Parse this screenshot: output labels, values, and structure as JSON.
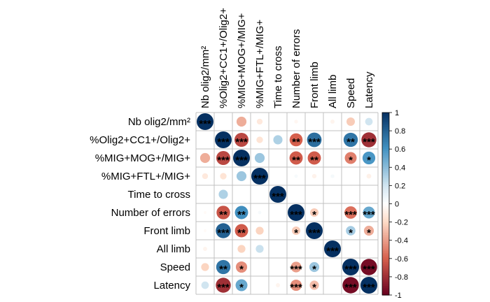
{
  "chart_data": {
    "type": "heatmap",
    "style": "corrplot-circles",
    "variables": [
      "Nb olig2/mm²",
      "%Olig2+CC1+/Olig2+",
      "%MIG+MOG+/MIG+",
      "%MIG+FTL+/MIG+",
      "Time to cross",
      "Number of errors",
      "Front limb",
      "All limb",
      "Speed",
      "Latency"
    ],
    "matrix": [
      [
        1.0,
        0.0,
        -0.35,
        -0.12,
        0.0,
        -0.05,
        0.0,
        -0.06,
        -0.25,
        0.2
      ],
      [
        0.0,
        1.0,
        -0.7,
        -0.15,
        0.3,
        -0.6,
        0.75,
        0.0,
        0.72,
        -0.8
      ],
      [
        -0.35,
        -0.7,
        1.0,
        0.35,
        0.0,
        -0.62,
        -0.62,
        0.0,
        -0.5,
        0.58
      ],
      [
        -0.12,
        -0.15,
        0.35,
        1.0,
        0.0,
        0.04,
        -0.07,
        0.05,
        0.0,
        -0.08
      ],
      [
        0.0,
        0.3,
        0.0,
        0.0,
        1.0,
        0.0,
        0.0,
        0.0,
        0.0,
        0.0
      ],
      [
        -0.03,
        -0.65,
        0.62,
        0.04,
        0.0,
        1.0,
        -0.25,
        0.0,
        -0.55,
        0.5
      ],
      [
        -0.03,
        0.8,
        -0.62,
        -0.22,
        0.0,
        -0.25,
        1.0,
        0.0,
        0.32,
        -0.35
      ],
      [
        -0.06,
        0.0,
        -0.22,
        0.22,
        0.0,
        0.0,
        0.0,
        1.0,
        0.0,
        0.0
      ],
      [
        -0.22,
        0.72,
        -0.45,
        0.0,
        0.0,
        -0.4,
        0.35,
        0.0,
        1.0,
        -0.95
      ],
      [
        0.2,
        -0.8,
        0.5,
        0.0,
        -0.06,
        -0.45,
        -0.3,
        0.0,
        -0.95,
        1.0
      ]
    ],
    "significance": [
      [
        "***",
        "",
        "",
        "",
        "",
        "",
        "",
        "",
        "",
        ""
      ],
      [
        "",
        "***",
        "***",
        "",
        "",
        "**",
        "***",
        "",
        "**",
        "***"
      ],
      [
        "",
        "***",
        "***",
        "",
        "",
        "**",
        "**",
        "",
        "*",
        "*"
      ],
      [
        "",
        "",
        "",
        "***",
        "",
        "",
        "",
        "",
        "",
        ""
      ],
      [
        "",
        "",
        "",
        "",
        "***",
        "",
        "",
        "",
        "",
        ""
      ],
      [
        "",
        "**",
        "**",
        "",
        "",
        "***",
        "*",
        "",
        "***",
        "***"
      ],
      [
        "",
        "***",
        "**",
        "",
        "",
        "*",
        "***",
        "",
        "*",
        "*"
      ],
      [
        "",
        "",
        "",
        "",
        "",
        "",
        "",
        "***",
        "",
        ""
      ],
      [
        "",
        "**",
        "*",
        "",
        "",
        "***",
        "*",
        "",
        "***",
        "***"
      ],
      [
        "",
        "***",
        "*",
        "",
        "",
        "***",
        "*",
        "",
        "***",
        "***"
      ]
    ],
    "colorbar": {
      "range": [
        -1,
        1
      ],
      "ticks": [
        "1",
        "0.8",
        "0.6",
        "0.4",
        "0.2",
        "0",
        "-0.2",
        "-0.4",
        "-0.6",
        "-0.8",
        "-1"
      ]
    },
    "colors": {
      "negative_strong": "#67001F",
      "negative_mid": "#D6604D",
      "negative_light": "#FDDBC7",
      "neutral": "#FFFFFF",
      "positive_light": "#D1E5F0",
      "positive_mid": "#4393C3",
      "positive_strong": "#053061",
      "grid": "#c0c0c0"
    }
  }
}
